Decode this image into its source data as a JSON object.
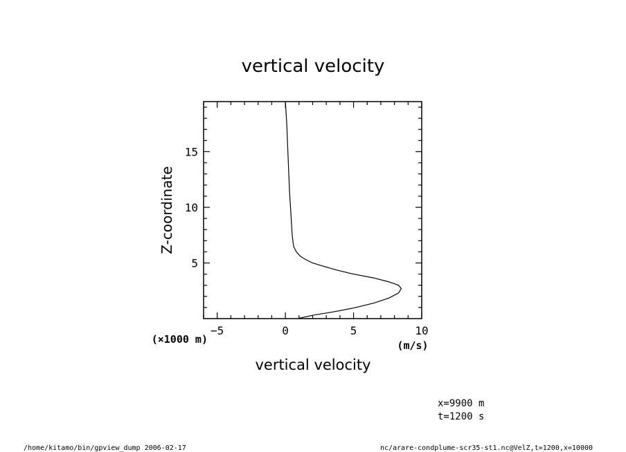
{
  "chart_data": {
    "type": "line",
    "title": "vertical velocity",
    "xlabel": "vertical velocity",
    "ylabel": "Z-coordinate",
    "x_unit": "(m/s)",
    "y_unit": "(×1000 m)",
    "xlim": [
      -6,
      10
    ],
    "ylim": [
      0,
      19.5
    ],
    "x_ticks": [
      -5,
      0,
      5,
      10
    ],
    "x_tick_labels": [
      "−5",
      "0",
      "5",
      "10"
    ],
    "y_ticks": [
      5,
      10,
      15
    ],
    "y_tick_labels": [
      "5",
      "10",
      "15"
    ],
    "grid": false,
    "series": [
      {
        "x": [
          0.9,
          2.0,
          3.5,
          5.0,
          6.5,
          7.6,
          8.3,
          8.5,
          8.3,
          7.6,
          6.5,
          5.0,
          3.8,
          2.8,
          2.0,
          1.5,
          1.1,
          0.8,
          0.6,
          0.5,
          0.45,
          0.4,
          0.35,
          0.3,
          0.25,
          0.2,
          0.15,
          0.1,
          0.05,
          0.0
        ],
        "y": [
          0.0,
          0.3,
          0.6,
          0.95,
          1.4,
          1.85,
          2.3,
          2.7,
          3.0,
          3.3,
          3.65,
          4.0,
          4.35,
          4.7,
          5.0,
          5.3,
          5.6,
          6.0,
          6.5,
          7.5,
          8.5,
          9.5,
          10.5,
          11.5,
          13.0,
          14.5,
          16.0,
          17.5,
          18.5,
          19.5
        ]
      }
    ]
  },
  "annotations": {
    "position_x": "x=9900  m",
    "position_t": "t=1200  s",
    "footer_left": "/home/kitamo/bin/gpview_dump   2006-02-17",
    "footer_right": "nc/arare-condplume-scr35-st1.nc@VelZ,t=1200,x=10000"
  }
}
